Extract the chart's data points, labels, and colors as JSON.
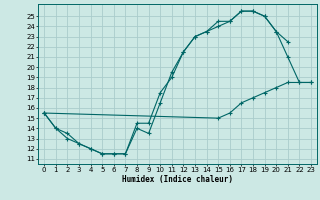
{
  "xlabel": "Humidex (Indice chaleur)",
  "bg_color": "#cce8e4",
  "grid_color": "#aacccc",
  "line_color": "#006666",
  "xlim": [
    -0.5,
    23.5
  ],
  "ylim": [
    10.5,
    26.2
  ],
  "xticks": [
    0,
    1,
    2,
    3,
    4,
    5,
    6,
    7,
    8,
    9,
    10,
    11,
    12,
    13,
    14,
    15,
    16,
    17,
    18,
    19,
    20,
    21,
    22,
    23
  ],
  "yticks": [
    11,
    12,
    13,
    14,
    15,
    16,
    17,
    18,
    19,
    20,
    21,
    22,
    23,
    24,
    25
  ],
  "line1_x": [
    0,
    1,
    2,
    3,
    4,
    5,
    6,
    7,
    8,
    9,
    10,
    11,
    12,
    13,
    14,
    15,
    16,
    17,
    18,
    19,
    20,
    21
  ],
  "line1_y": [
    15.5,
    14.0,
    13.0,
    12.5,
    12.0,
    11.5,
    11.5,
    11.5,
    14.0,
    13.5,
    16.5,
    19.5,
    21.5,
    23.0,
    23.5,
    24.0,
    24.5,
    25.5,
    25.5,
    25.0,
    23.5,
    22.5
  ],
  "line2_x": [
    0,
    1,
    2,
    3,
    4,
    5,
    6,
    7,
    8,
    9,
    10,
    11,
    12,
    13,
    14,
    15,
    16,
    17,
    18,
    19,
    20,
    21,
    22,
    23
  ],
  "line2_y": [
    15.5,
    14.0,
    13.5,
    12.5,
    12.0,
    11.5,
    11.5,
    11.5,
    14.5,
    14.5,
    17.5,
    19.0,
    21.5,
    23.0,
    23.5,
    24.5,
    24.5,
    25.5,
    25.5,
    25.0,
    23.5,
    21.0,
    18.5,
    18.5
  ],
  "line3_x": [
    0,
    15,
    16,
    17,
    18,
    19,
    20,
    21,
    22,
    23
  ],
  "line3_y": [
    15.5,
    15.0,
    15.5,
    16.5,
    17.0,
    17.5,
    18.0,
    18.5,
    18.5,
    18.5
  ]
}
